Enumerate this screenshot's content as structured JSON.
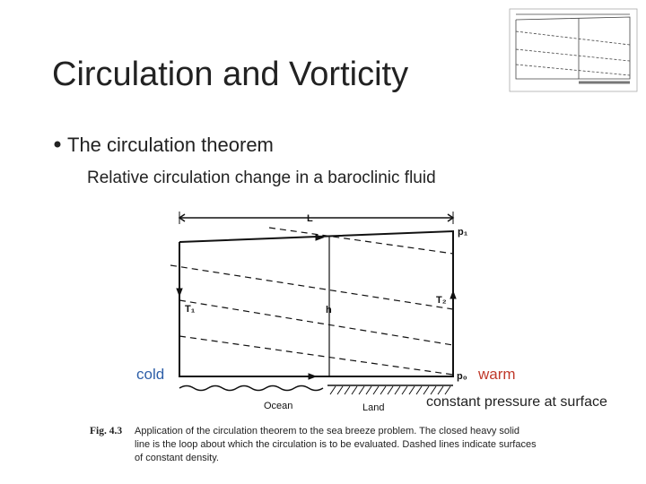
{
  "header": {
    "title": "Circulation and Vorticity"
  },
  "bullets": {
    "main": "The circulation theorem",
    "sub": "Relative circulation change in a baroclinic fluid"
  },
  "figure": {
    "labels": {
      "L": "L",
      "p1": "p₁",
      "T1": "T₁",
      "T2": "T₂",
      "h": "h",
      "p0": "p₀",
      "ocean": "Ocean",
      "land": "Land"
    },
    "caption_number": "Fig. 4.3",
    "caption_lines": [
      "Application of the circulation theorem to the sea breeze problem. The closed heavy solid",
      "line is the loop about which the circulation is to be evaluated. Dashed lines indicate surfaces",
      "of constant density."
    ]
  },
  "annotations": {
    "cold": "cold",
    "warm": "warm",
    "surface": "constant pressure at surface"
  }
}
